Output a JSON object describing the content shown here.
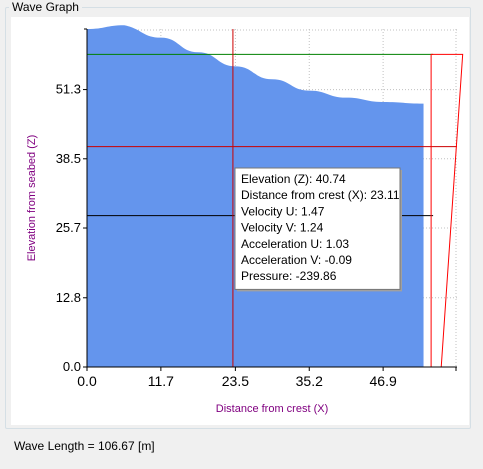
{
  "window": {
    "group_title": "Wave Graph"
  },
  "status": {
    "wave_length_label": "Wave Length = 106.67  [m]"
  },
  "chart_data": {
    "type": "area",
    "title": "",
    "xlabel": "Distance from crest (X)",
    "ylabel": "Elevation from seabed (Z)",
    "xlim": [
      0,
      58.6
    ],
    "ylim": [
      0,
      62.5
    ],
    "x_ticks": [
      "0.0",
      "11.7",
      "23.5",
      "35.2",
      "46.9"
    ],
    "x_tick_values": [
      0,
      11.7,
      23.5,
      35.2,
      46.9
    ],
    "y_ticks": [
      "0.0",
      "12.8",
      "25.7",
      "38.5",
      "51.3"
    ],
    "y_tick_values": [
      0,
      12.8,
      25.7,
      38.5,
      51.3
    ],
    "grid": true,
    "surface_profile": {
      "x": [
        0,
        5.9,
        11.7,
        17.6,
        23.5,
        29.3,
        35.2,
        41.0,
        46.9,
        53.3
      ],
      "y": [
        64.5,
        63.2,
        60.9,
        58.2,
        55.6,
        53.2,
        51.1,
        49.8,
        49.0,
        48.7
      ],
      "fill_color": "#6495ed"
    },
    "horizontal_lines": [
      {
        "y": 57.8,
        "color": "#008000"
      },
      {
        "y": 40.74,
        "color": "#cc0000"
      },
      {
        "y": 28.0,
        "color": "#000000"
      }
    ],
    "cursor": {
      "x": 23.11,
      "y": 40.74,
      "color": "#cc0000"
    },
    "velocity_profile": {
      "color": "#ff0000",
      "x_left": 54.5,
      "top_y": 57.8,
      "bottom_y": 0,
      "top_width": 5.0,
      "bottom_width": 1.6
    },
    "tooltip": [
      "Elevation (Z): 40.74",
      "Distance from crest (X): 23.11",
      "Velocity U: 1.47",
      "Velocity V: 1.24",
      "Acceleration U: 1.03",
      "Acceleration V: -0.09",
      "Pressure: -239.86"
    ],
    "colors": {
      "axis_label": "#800080",
      "grid": "#c0c0c0"
    }
  }
}
